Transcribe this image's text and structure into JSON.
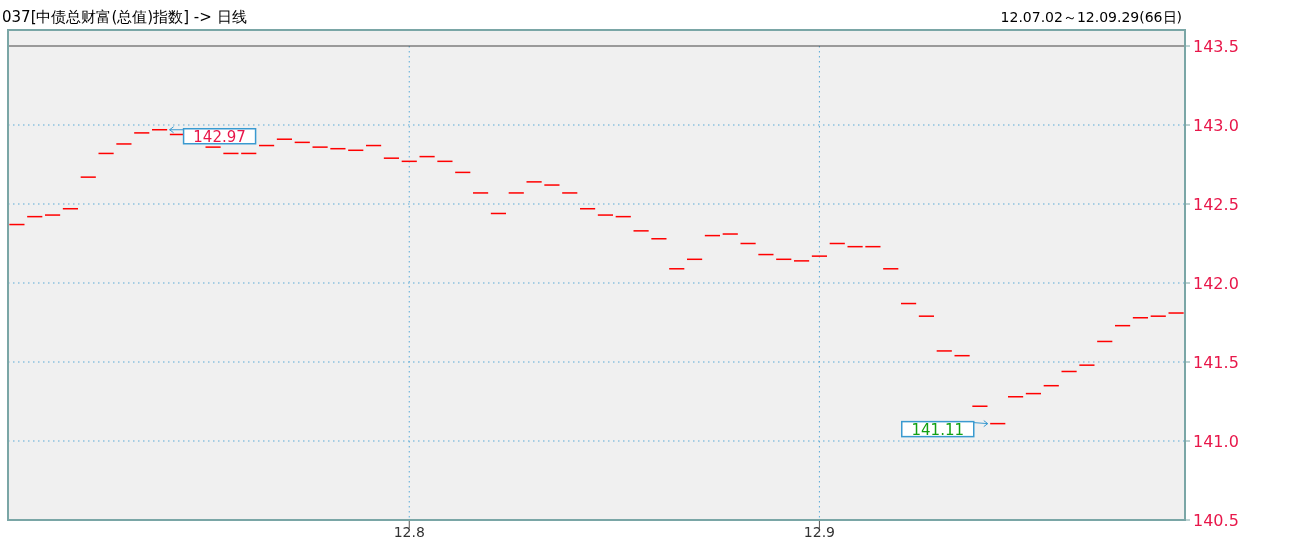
{
  "chart_data": {
    "type": "candlestick",
    "title": "037[中债总财富(总值)指数] -> 日线",
    "subtitle": "12.07.02～12.09.29(66日)",
    "categories": [
      null,
      null,
      null,
      null,
      null,
      null,
      null,
      null,
      null,
      null,
      null,
      null,
      null,
      null,
      null,
      null,
      null,
      null,
      null,
      null,
      null,
      null,
      "12.8",
      null,
      null,
      null,
      null,
      null,
      null,
      null,
      null,
      null,
      null,
      null,
      null,
      null,
      null,
      null,
      null,
      null,
      null,
      null,
      null,
      null,
      null,
      "12.9",
      null,
      null,
      null,
      null,
      null,
      null,
      null,
      null,
      null,
      null,
      null,
      null,
      null,
      null,
      null,
      null,
      null,
      null,
      null,
      null
    ],
    "ohlc": [
      [
        142.37,
        142.37,
        142.37,
        142.37
      ],
      [
        142.42,
        142.42,
        142.42,
        142.42
      ],
      [
        142.43,
        142.43,
        142.43,
        142.43
      ],
      [
        142.47,
        142.47,
        142.47,
        142.47
      ],
      [
        142.67,
        142.67,
        142.67,
        142.67
      ],
      [
        142.82,
        142.82,
        142.82,
        142.82
      ],
      [
        142.88,
        142.88,
        142.88,
        142.88
      ],
      [
        142.95,
        142.95,
        142.95,
        142.95
      ],
      [
        142.97,
        142.97,
        142.97,
        142.97
      ],
      [
        142.94,
        142.94,
        142.94,
        142.94
      ],
      null,
      [
        142.86,
        142.86,
        142.86,
        142.86
      ],
      [
        142.82,
        142.82,
        142.82,
        142.82
      ],
      [
        142.82,
        142.82,
        142.82,
        142.82
      ],
      [
        142.87,
        142.87,
        142.87,
        142.87
      ],
      [
        142.91,
        142.91,
        142.91,
        142.91
      ],
      [
        142.89,
        142.89,
        142.89,
        142.89
      ],
      [
        142.86,
        142.86,
        142.86,
        142.86
      ],
      [
        142.85,
        142.85,
        142.85,
        142.85
      ],
      [
        142.84,
        142.84,
        142.84,
        142.84
      ],
      [
        142.87,
        142.87,
        142.87,
        142.87
      ],
      [
        142.79,
        142.79,
        142.79,
        142.79
      ],
      [
        142.77,
        142.77,
        142.77,
        142.77
      ],
      [
        142.8,
        142.8,
        142.8,
        142.8
      ],
      [
        142.77,
        142.77,
        142.77,
        142.77
      ],
      [
        142.7,
        142.7,
        142.7,
        142.7
      ],
      [
        142.57,
        142.57,
        142.57,
        142.57
      ],
      [
        142.44,
        142.44,
        142.44,
        142.44
      ],
      [
        142.57,
        142.57,
        142.57,
        142.57
      ],
      [
        142.64,
        142.64,
        142.64,
        142.64
      ],
      [
        142.62,
        142.62,
        142.62,
        142.62
      ],
      [
        142.57,
        142.57,
        142.57,
        142.57
      ],
      [
        142.47,
        142.47,
        142.47,
        142.47
      ],
      [
        142.43,
        142.43,
        142.43,
        142.43
      ],
      [
        142.42,
        142.42,
        142.42,
        142.42
      ],
      [
        142.33,
        142.33,
        142.33,
        142.33
      ],
      [
        142.28,
        142.28,
        142.28,
        142.28
      ],
      [
        142.09,
        142.09,
        142.09,
        142.09
      ],
      [
        142.15,
        142.15,
        142.15,
        142.15
      ],
      [
        142.3,
        142.3,
        142.3,
        142.3
      ],
      [
        142.31,
        142.31,
        142.31,
        142.31
      ],
      [
        142.25,
        142.25,
        142.25,
        142.25
      ],
      [
        142.18,
        142.18,
        142.18,
        142.18
      ],
      [
        142.15,
        142.15,
        142.15,
        142.15
      ],
      [
        142.14,
        142.14,
        142.14,
        142.14
      ],
      [
        142.17,
        142.17,
        142.17,
        142.17
      ],
      [
        142.25,
        142.25,
        142.25,
        142.25
      ],
      [
        142.23,
        142.23,
        142.23,
        142.23
      ],
      [
        142.23,
        142.23,
        142.23,
        142.23
      ],
      [
        142.09,
        142.09,
        142.09,
        142.09
      ],
      [
        141.87,
        141.87,
        141.87,
        141.87
      ],
      [
        141.79,
        141.79,
        141.79,
        141.79
      ],
      [
        141.57,
        141.57,
        141.57,
        141.57
      ],
      [
        141.54,
        141.54,
        141.54,
        141.54
      ],
      [
        141.22,
        141.22,
        141.22,
        141.22
      ],
      [
        141.11,
        141.11,
        141.11,
        141.11
      ],
      [
        141.28,
        141.28,
        141.28,
        141.28
      ],
      [
        141.3,
        141.3,
        141.3,
        141.3
      ],
      [
        141.35,
        141.35,
        141.35,
        141.35
      ],
      [
        141.44,
        141.44,
        141.44,
        141.44
      ],
      [
        141.48,
        141.48,
        141.48,
        141.48
      ],
      [
        141.63,
        141.63,
        141.63,
        141.63
      ],
      [
        141.73,
        141.73,
        141.73,
        141.73
      ],
      [
        141.78,
        141.78,
        141.78,
        141.78
      ],
      [
        141.79,
        141.79,
        141.79,
        141.79
      ],
      [
        141.81,
        141.81,
        141.81,
        141.81
      ]
    ],
    "color": "#ff0000",
    "ylim": [
      140.5,
      143.5
    ],
    "yticks": [
      {
        "value": 140.5,
        "label": "140.5"
      },
      {
        "value": 141,
        "label": "141.0"
      },
      {
        "value": 141.5,
        "label": "141.5"
      },
      {
        "value": 142,
        "label": "142.0"
      },
      {
        "value": 142.5,
        "label": "142.5"
      },
      {
        "value": 143,
        "label": "143.0"
      },
      {
        "value": 143.5,
        "label": "143.5"
      }
    ],
    "grid": true,
    "annotations": [
      "142.97",
      "141.11"
    ]
  }
}
